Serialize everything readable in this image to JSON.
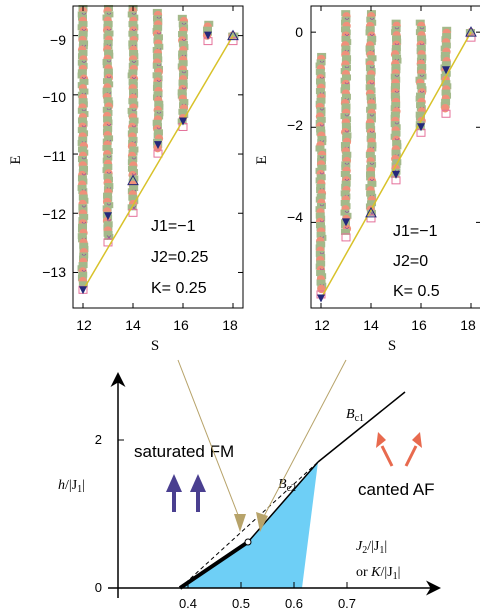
{
  "colors": {
    "green": "#a3b98a",
    "salmon": "#f0907a",
    "navy": "#24287a",
    "purple": "#8a4aa0",
    "pink": "#e4709a",
    "yellow": "#e0c93a",
    "line": "#d8c22a",
    "region": "#6ecff6",
    "arrow_brown": "#b7a36a",
    "arrow_blue": "#4a3f90",
    "arrow_red": "#e86a4e"
  },
  "chart_data": [
    {
      "type": "scatter",
      "panel": "left",
      "xlabel": "S",
      "ylabel": "E",
      "xlim": [
        11.6,
        18.4
      ],
      "ylim": [
        -13.6,
        -8.5
      ],
      "xticks": [
        12,
        14,
        16,
        18
      ],
      "yticks": [
        -13,
        -12,
        -11,
        -10,
        -9
      ],
      "params": [
        "J1=−1",
        "J2=0.25",
        "K=  0.25"
      ],
      "columns": [
        {
          "S": 12,
          "E_min": -13.2,
          "E_max": -8.5
        },
        {
          "S": 13,
          "E_min": -12.4,
          "E_max": -8.5
        },
        {
          "S": 14,
          "E_min": -11.9,
          "E_max": -8.5
        },
        {
          "S": 15,
          "E_min": -10.9,
          "E_max": -8.6
        },
        {
          "S": 16,
          "E_min": -10.45,
          "E_max": -8.7
        },
        {
          "S": 17,
          "E_min": -9.0,
          "E_max": -8.8
        },
        {
          "S": 18,
          "E_min": -9.0,
          "E_max": -9.0
        }
      ],
      "line": {
        "x": [
          12,
          18
        ],
        "y": [
          -13.3,
          -9.0
        ]
      },
      "ground_states": {
        "S": [
          12,
          13,
          14,
          15,
          16,
          17,
          18
        ],
        "E": [
          -13.3,
          -12.05,
          -11.45,
          -10.85,
          -10.45,
          -9.0,
          -9.0
        ]
      }
    },
    {
      "type": "scatter",
      "panel": "right",
      "xlabel": "S",
      "ylabel": "E",
      "xlim": [
        11.6,
        18.4
      ],
      "ylim": [
        -5.8,
        0.55
      ],
      "xticks": [
        12,
        14,
        16,
        18
      ],
      "yticks": [
        -4,
        -2,
        0
      ],
      "params": [
        "J1=−1",
        "J2=0",
        "K=  0.5"
      ],
      "columns": [
        {
          "S": 12,
          "E_min": -5.4,
          "E_max": -0.5
        },
        {
          "S": 13,
          "E_min": -4.2,
          "E_max": 0.4
        },
        {
          "S": 14,
          "E_min": -3.8,
          "E_max": 0.4
        },
        {
          "S": 15,
          "E_min": -3.0,
          "E_max": 0.2
        },
        {
          "S": 16,
          "E_min": -2.0,
          "E_max": 0.2
        },
        {
          "S": 17,
          "E_min": -1.6,
          "E_max": 0.05
        },
        {
          "S": 18,
          "E_min": 0.0,
          "E_max": 0.0
        }
      ],
      "line": {
        "x": [
          12,
          18
        ],
        "y": [
          -5.6,
          0.0
        ]
      },
      "ground_states": {
        "S": [
          12,
          13,
          14,
          15,
          16,
          17,
          18
        ],
        "E": [
          -5.6,
          -4.0,
          -3.8,
          -3.0,
          -2.0,
          -0.8,
          0.0
        ]
      }
    },
    {
      "type": "area",
      "panel": "phase-diagram",
      "xlabel": "J2/|J1|  or  K/|J1|",
      "ylabel": "h/|J1|",
      "xlim": [
        0.3,
        0.85
      ],
      "ylim": [
        0,
        2.4
      ],
      "xticks": [
        "0.4",
        "0.5",
        "0.6",
        "0.7"
      ],
      "yticks": [
        "0",
        "2"
      ],
      "regions": [
        "saturated FM",
        "canted AF"
      ],
      "boundaries": [
        {
          "name": "Bc2",
          "points": [
            [
              0.375,
              0.0
            ],
            [
              0.5,
              0.67
            ],
            [
              0.68,
              1.67
            ]
          ]
        },
        {
          "name": "Bc1",
          "points": [
            [
              0.68,
              1.67
            ],
            [
              0.8,
              2.6
            ]
          ]
        }
      ],
      "critical_point": {
        "x": 0.5,
        "y": 0.67
      }
    }
  ],
  "labels": {
    "s_left": "S",
    "s_right": "S",
    "e_left": "E",
    "e_right": "E",
    "left_j1": "J1=−1",
    "left_j2": "J2=0.25",
    "left_k": "K=  0.25",
    "right_j1": "J1=−1",
    "right_j2": "J2=0",
    "right_k": "K=  0.5",
    "saturated": "saturated FM",
    "canted": "canted AF",
    "bc1_b": "B",
    "bc1_sub": "c1",
    "bc2_b": "B",
    "bc2_sub": "c2",
    "h_ax": "h",
    "h_den": "/|J",
    "h_sub": "1",
    "h_end": "|",
    "j2_ax": "J",
    "j2_sub": "2",
    "j2_rest": "/|J",
    "j2_sub1": "1",
    "j2_end": "|",
    "or_k": "or  ",
    "k_ax": "K",
    "k_rest": "/|J",
    "k_sub1": "1",
    "k_end": "|",
    "t0": "0",
    "t2": "2",
    "t04": "0.4",
    "t05": "0.5",
    "t06": "0.6",
    "t07": "0.7",
    "lx12": "12",
    "lx14": "14",
    "lx16": "16",
    "lx18": "18",
    "rx12": "12",
    "rx14": "14",
    "rx16": "16",
    "rx18": "18",
    "ly9": "−9",
    "ly10": "−10",
    "ly11": "−11",
    "ly12": "−12",
    "ly13": "−13",
    "ry0": "0",
    "ry2": "−2",
    "ry4": "−4"
  }
}
